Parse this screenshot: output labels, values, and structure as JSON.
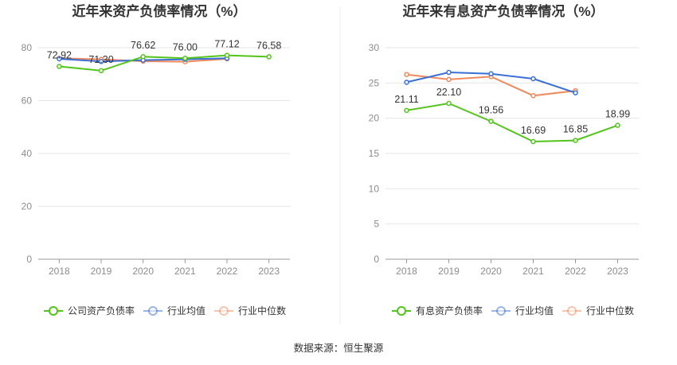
{
  "source_text": "数据来源：恒生聚源",
  "chart_data": [
    {
      "type": "line",
      "title": "近年来资产负债率情况（%）",
      "categories": [
        "2018",
        "2019",
        "2020",
        "2021",
        "2022",
        "2023"
      ],
      "ylim": [
        0,
        80
      ],
      "yticks": [
        0,
        20,
        40,
        60,
        80
      ],
      "grid": true,
      "legend_position": "bottom",
      "series": [
        {
          "name": "公司资产负债率",
          "color": "#52c41a",
          "values": [
            72.92,
            71.3,
            76.62,
            76.0,
            77.12,
            76.58
          ],
          "labels": [
            "72.92",
            "71.30",
            "76.62",
            "76.00",
            "77.12",
            "76.58"
          ]
        },
        {
          "name": "行业均值",
          "color": "#3a6fd8",
          "values": [
            75.8,
            74.8,
            75.3,
            75.6,
            76.0,
            null
          ],
          "labels": []
        },
        {
          "name": "行业中位数",
          "color": "#f08a5d",
          "values": [
            76.0,
            75.6,
            74.9,
            74.7,
            75.8,
            null
          ],
          "labels": []
        }
      ]
    },
    {
      "type": "line",
      "title": "近年来有息资产负债率情况（%）",
      "categories": [
        "2018",
        "2019",
        "2020",
        "2021",
        "2022",
        "2023"
      ],
      "ylim": [
        0,
        30
      ],
      "yticks": [
        0,
        5,
        10,
        15,
        20,
        25,
        30
      ],
      "grid": true,
      "legend_position": "bottom",
      "series": [
        {
          "name": "有息资产负债率",
          "color": "#52c41a",
          "values": [
            21.11,
            22.1,
            19.56,
            16.69,
            16.85,
            18.99
          ],
          "labels": [
            "21.11",
            "22.10",
            "19.56",
            "16.69",
            "16.85",
            "18.99"
          ]
        },
        {
          "name": "行业均值",
          "color": "#3a6fd8",
          "values": [
            25.1,
            26.5,
            26.3,
            25.6,
            23.6,
            null
          ],
          "labels": []
        },
        {
          "name": "行业中位数",
          "color": "#f08a5d",
          "values": [
            26.2,
            25.5,
            25.9,
            23.2,
            23.9,
            null
          ],
          "labels": []
        }
      ]
    }
  ]
}
